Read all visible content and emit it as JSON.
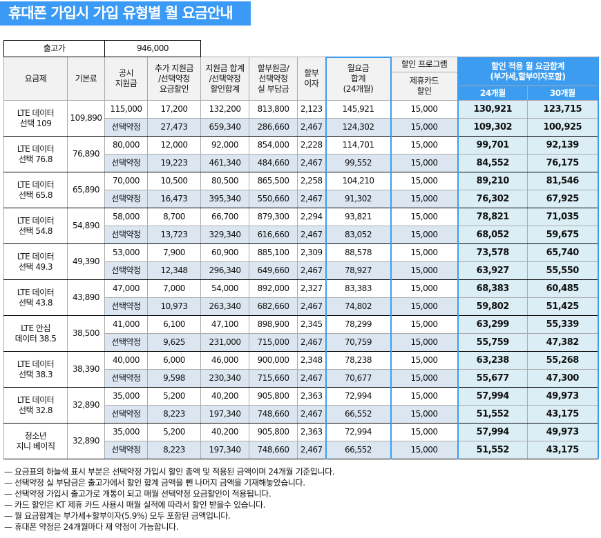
{
  "title": "휴대폰 가입시 가입 유형별 월 요금안내",
  "price": {
    "label": "출고가",
    "value": "946,000"
  },
  "headers": {
    "plan": "요금제",
    "base": "기본료",
    "public": "공시\n지원금",
    "extra": "추가 지원금\n/선택약정\n요금할인",
    "total": "지원금 합계\n/선택약정\n할인합계",
    "installment": "할부원금/\n선택약정\n실 부담금",
    "interest": "할부\n이자",
    "monthly": "월요금\n합계\n(24개월)",
    "program": "할인 프로그램",
    "card": "제휴카드\n할인",
    "applied": "할인 적용 월 요금합계\n(부가세,할부이자포함)",
    "m24": "24개월",
    "m30": "30개월"
  },
  "plans": [
    {
      "name": "LTE 데이터\n선택 109",
      "base": "109,890",
      "rows": [
        [
          "115,000",
          "17,200",
          "132,200",
          "813,800",
          "2,123",
          "145,921",
          "15,000",
          "130,921",
          "123,715"
        ],
        [
          "선택약정",
          "27,473",
          "659,340",
          "286,660",
          "2,467",
          "124,302",
          "15,000",
          "109,302",
          "100,925"
        ]
      ]
    },
    {
      "name": "LTE 데이터\n선택 76.8",
      "base": "76,890",
      "rows": [
        [
          "80,000",
          "12,000",
          "92,000",
          "854,000",
          "2,228",
          "114,701",
          "15,000",
          "99,701",
          "92,139"
        ],
        [
          "선택약정",
          "19,223",
          "461,340",
          "484,660",
          "2,467",
          "99,552",
          "15,000",
          "84,552",
          "76,175"
        ]
      ]
    },
    {
      "name": "LTE 데이터\n선택 65.8",
      "base": "65,890",
      "rows": [
        [
          "70,000",
          "10,500",
          "80,500",
          "865,500",
          "2,258",
          "104,210",
          "15,000",
          "89,210",
          "81,546"
        ],
        [
          "선택약정",
          "16,473",
          "395,340",
          "550,660",
          "2,467",
          "91,302",
          "15,000",
          "76,302",
          "67,925"
        ]
      ]
    },
    {
      "name": "LTE 데이터\n선택 54.8",
      "base": "54,890",
      "rows": [
        [
          "58,000",
          "8,700",
          "66,700",
          "879,300",
          "2,294",
          "93,821",
          "15,000",
          "78,821",
          "71,035"
        ],
        [
          "선택약정",
          "13,723",
          "329,340",
          "616,660",
          "2,467",
          "83,052",
          "15,000",
          "68,052",
          "59,675"
        ]
      ]
    },
    {
      "name": "LTE 데이터\n선택 49.3",
      "base": "49,390",
      "rows": [
        [
          "53,000",
          "7,900",
          "60,900",
          "885,100",
          "2,309",
          "88,578",
          "15,000",
          "73,578",
          "65,740"
        ],
        [
          "선택약정",
          "12,348",
          "296,340",
          "649,660",
          "2,467",
          "78,927",
          "15,000",
          "63,927",
          "55,550"
        ]
      ]
    },
    {
      "name": "LTE 데이터\n선택 43.8",
      "base": "43,890",
      "rows": [
        [
          "47,000",
          "7,000",
          "54,000",
          "892,000",
          "2,327",
          "83,383",
          "15,000",
          "68,383",
          "60,485"
        ],
        [
          "선택약정",
          "10,973",
          "263,340",
          "682,660",
          "2,467",
          "74,802",
          "15,000",
          "59,802",
          "51,425"
        ]
      ]
    },
    {
      "name": "LTE 안심\n데이터 38.5",
      "base": "38,500",
      "rows": [
        [
          "41,000",
          "6,100",
          "47,100",
          "898,900",
          "2,345",
          "78,299",
          "15,000",
          "63,299",
          "55,339"
        ],
        [
          "선택약정",
          "9,625",
          "231,000",
          "715,000",
          "2,467",
          "70,759",
          "15,000",
          "55,759",
          "47,382"
        ]
      ]
    },
    {
      "name": "LTE 데이터\n선택 38.3",
      "base": "38,390",
      "rows": [
        [
          "40,000",
          "6,000",
          "46,000",
          "900,000",
          "2,348",
          "78,238",
          "15,000",
          "63,238",
          "55,268"
        ],
        [
          "선택약정",
          "9,598",
          "230,340",
          "715,660",
          "2,467",
          "70,677",
          "15,000",
          "55,677",
          "47,300"
        ]
      ]
    },
    {
      "name": "LTE 데이터\n선택 32.8",
      "base": "32,890",
      "rows": [
        [
          "35,000",
          "5,200",
          "40,200",
          "905,800",
          "2,363",
          "72,994",
          "15,000",
          "57,994",
          "49,973"
        ],
        [
          "선택약정",
          "8,223",
          "197,340",
          "748,660",
          "2,467",
          "66,552",
          "15,000",
          "51,552",
          "43,175"
        ]
      ]
    },
    {
      "name": "청소년\n지니 베이직",
      "base": "32,890",
      "rows": [
        [
          "35,000",
          "5,200",
          "40,200",
          "905,800",
          "2,363",
          "72,994",
          "15,000",
          "57,994",
          "49,973"
        ],
        [
          "선택약정",
          "8,223",
          "197,340",
          "748,660",
          "2,467",
          "66,552",
          "15,000",
          "51,552",
          "43,175"
        ]
      ]
    }
  ],
  "notes": [
    "— 요금표의 하늘색 표시 부분은 선택약정 가입시 할인 총액 및 적용된 금액이며 24개월 기준입니다.",
    "— 선택약정 실 부담금은 출고가에서 할인 합계 금액을 뺀 나머지 금액을 기재해놓았습니다.",
    "— 선택약정 가입시 출고가로 개통이 되고 매월 선택약정 요금할인이 적용됩니다.",
    "— 카드 할인은 KT 제휴 카드 사용시 매월 실적에 따라서 할인 받을수 있습니다.",
    "— 월 요금합계는 부가세+할부이자(5.9%) 모두 포함된 금액입니다.",
    "— 휴대폰 약정은 24개월마다 재 약정이 가능합니다."
  ],
  "colors": {
    "accent": "#3c9cf0",
    "light_blue": "#dbeef5",
    "selected_row": "#dce6f0",
    "header_gray": "#f2f2f2"
  }
}
